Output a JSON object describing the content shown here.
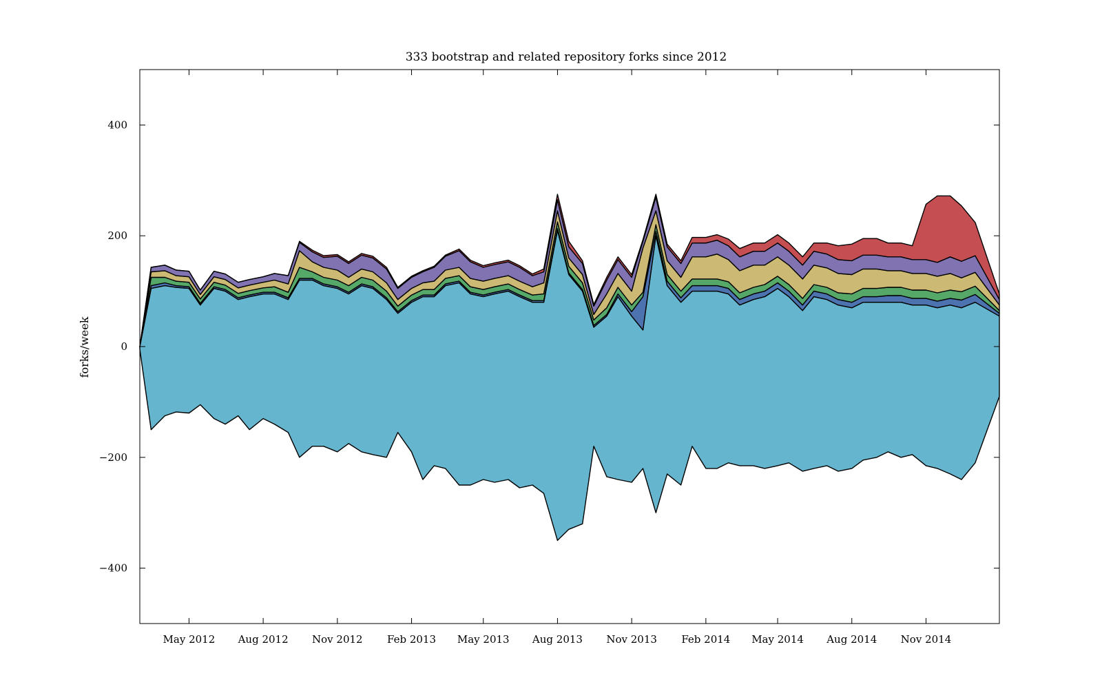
{
  "chart_data": {
    "type": "area",
    "subtype": "streamgraph",
    "title": "333 bootstrap and related repository forks since 2012",
    "xlabel": "",
    "ylabel": "forks/week",
    "ylim": [
      -500,
      500
    ],
    "xlim": [
      "2012-03-01",
      "2015-01-31"
    ],
    "yticks": [
      400,
      200,
      0,
      -200,
      -400
    ],
    "ytick_labels": [
      "400",
      "200",
      "0",
      "−200",
      "−400"
    ],
    "xticks": [
      "2012-05-01",
      "2012-08-01",
      "2012-11-01",
      "2013-02-01",
      "2013-05-01",
      "2013-08-01",
      "2013-11-01",
      "2014-02-01",
      "2014-05-01",
      "2014-08-01",
      "2014-11-01"
    ],
    "xtick_labels": [
      "May 2012",
      "Aug 2012",
      "Nov 2012",
      "Feb 2013",
      "May 2013",
      "Aug 2013",
      "Nov 2013",
      "Feb 2014",
      "May 2014",
      "Aug 2014",
      "Nov 2014"
    ],
    "grid": false,
    "legend": "none",
    "colors": [
      "#64b5cd",
      "#4c72b0",
      "#55a868",
      "#ccb974",
      "#8172b2",
      "#c44e52"
    ],
    "edge_color": "#000000",
    "dates": [
      "2012-03-01",
      "2012-03-15",
      "2012-04-01",
      "2012-04-15",
      "2012-05-01",
      "2012-05-15",
      "2012-06-01",
      "2012-06-15",
      "2012-07-01",
      "2012-07-15",
      "2012-08-01",
      "2012-08-15",
      "2012-09-01",
      "2012-09-15",
      "2012-10-01",
      "2012-10-15",
      "2012-11-01",
      "2012-11-15",
      "2012-12-01",
      "2012-12-15",
      "2013-01-01",
      "2013-01-15",
      "2013-02-01",
      "2013-02-15",
      "2013-03-01",
      "2013-03-15",
      "2013-04-01",
      "2013-04-15",
      "2013-05-01",
      "2013-05-15",
      "2013-06-01",
      "2013-06-15",
      "2013-07-01",
      "2013-07-15",
      "2013-08-01",
      "2013-08-15",
      "2013-09-01",
      "2013-09-15",
      "2013-10-01",
      "2013-10-15",
      "2013-11-01",
      "2013-11-15",
      "2013-12-01",
      "2013-12-15",
      "2014-01-01",
      "2014-01-15",
      "2014-02-01",
      "2014-02-15",
      "2014-03-01",
      "2014-03-15",
      "2014-04-01",
      "2014-04-15",
      "2014-05-01",
      "2014-05-15",
      "2014-06-01",
      "2014-06-15",
      "2014-07-01",
      "2014-07-15",
      "2014-08-01",
      "2014-08-15",
      "2014-09-01",
      "2014-09-15",
      "2014-10-01",
      "2014-10-15",
      "2014-11-01",
      "2014-11-15",
      "2014-12-01",
      "2014-12-15",
      "2015-01-01",
      "2015-01-31"
    ],
    "baseline": [
      -5,
      -150,
      -125,
      -118,
      -120,
      -105,
      -130,
      -140,
      -125,
      -150,
      -130,
      -140,
      -155,
      -200,
      -180,
      -180,
      -190,
      -175,
      -190,
      -195,
      -200,
      -155,
      -190,
      -240,
      -215,
      -220,
      -250,
      -250,
      -240,
      -245,
      -240,
      -255,
      -250,
      -265,
      -350,
      -330,
      -320,
      -180,
      -235,
      -240,
      -245,
      -220,
      -300,
      -230,
      -250,
      -180,
      -220,
      -220,
      -210,
      -215,
      -215,
      -220,
      -215,
      -210,
      -225,
      -220,
      -215,
      -225,
      -220,
      -205,
      -200,
      -190,
      -200,
      -195,
      -215,
      -220,
      -230,
      -240,
      -210,
      -90
    ],
    "series": [
      {
        "values": [
          5,
          255,
          235,
          225,
          225,
          180,
          235,
          240,
          210,
          240,
          225,
          235,
          240,
          320,
          300,
          290,
          295,
          270,
          300,
          300,
          285,
          215,
          270,
          330,
          305,
          330,
          365,
          345,
          330,
          340,
          340,
          345,
          330,
          345,
          560,
          460,
          420,
          215,
          290,
          330,
          300,
          250,
          500,
          340,
          330,
          280,
          320,
          320,
          305,
          290,
          300,
          310,
          320,
          300,
          290,
          310,
          300,
          300,
          290,
          285,
          280,
          270,
          280,
          270,
          290,
          290,
          305,
          310,
          290,
          145
        ]
      },
      {
        "values": [
          0,
          5,
          5,
          3,
          3,
          3,
          3,
          3,
          3,
          3,
          3,
          3,
          3,
          3,
          3,
          3,
          3,
          3,
          3,
          3,
          3,
          3,
          3,
          3,
          3,
          3,
          3,
          3,
          3,
          3,
          3,
          3,
          3,
          3,
          3,
          3,
          3,
          3,
          3,
          5,
          8,
          60,
          8,
          8,
          8,
          10,
          10,
          10,
          10,
          10,
          10,
          10,
          10,
          10,
          10,
          10,
          10,
          10,
          10,
          10,
          10,
          12,
          12,
          12,
          12,
          12,
          12,
          14,
          14,
          5
        ]
      },
      {
        "values": [
          0,
          15,
          10,
          8,
          8,
          8,
          8,
          8,
          8,
          8,
          8,
          10,
          10,
          20,
          12,
          12,
          12,
          12,
          12,
          12,
          12,
          10,
          10,
          10,
          10,
          10,
          10,
          10,
          10,
          10,
          10,
          10,
          10,
          12,
          12,
          12,
          12,
          10,
          12,
          12,
          12,
          8,
          12,
          12,
          12,
          12,
          12,
          12,
          12,
          12,
          12,
          12,
          12,
          12,
          12,
          12,
          12,
          12,
          15,
          15,
          15,
          15,
          15,
          15,
          15,
          15,
          15,
          15,
          15,
          5
        ]
      },
      {
        "values": [
          0,
          10,
          12,
          10,
          10,
          8,
          10,
          10,
          10,
          10,
          10,
          12,
          15,
          30,
          18,
          18,
          18,
          15,
          15,
          15,
          15,
          12,
          12,
          12,
          15,
          15,
          15,
          15,
          15,
          15,
          15,
          15,
          15,
          20,
          20,
          15,
          15,
          10,
          25,
          25,
          25,
          80,
          25,
          25,
          25,
          40,
          40,
          45,
          40,
          40,
          40,
          35,
          35,
          35,
          35,
          35,
          35,
          35,
          35,
          35,
          35,
          30,
          30,
          30,
          30,
          30,
          30,
          25,
          25,
          10
        ]
      },
      {
        "values": [
          0,
          8,
          10,
          10,
          10,
          8,
          10,
          10,
          10,
          10,
          10,
          12,
          15,
          15,
          18,
          18,
          25,
          25,
          25,
          25,
          25,
          20,
          20,
          20,
          25,
          25,
          30,
          30,
          25,
          25,
          25,
          25,
          20,
          20,
          20,
          20,
          20,
          15,
          25,
          25,
          25,
          12,
          25,
          25,
          25,
          25,
          25,
          25,
          25,
          25,
          25,
          25,
          25,
          25,
          25,
          25,
          25,
          25,
          25,
          25,
          25,
          25,
          25,
          25,
          25,
          25,
          30,
          30,
          30,
          10
        ]
      },
      {
        "values": [
          0,
          0,
          0,
          0,
          0,
          0,
          0,
          0,
          0,
          0,
          0,
          0,
          0,
          2,
          3,
          3,
          3,
          3,
          3,
          3,
          3,
          2,
          2,
          2,
          2,
          2,
          3,
          3,
          3,
          3,
          3,
          3,
          3,
          5,
          10,
          10,
          5,
          3,
          5,
          5,
          5,
          3,
          5,
          5,
          5,
          10,
          10,
          10,
          12,
          15,
          15,
          15,
          15,
          15,
          15,
          15,
          20,
          25,
          30,
          30,
          30,
          25,
          25,
          25,
          100,
          120,
          110,
          100,
          60,
          10
        ]
      }
    ]
  }
}
